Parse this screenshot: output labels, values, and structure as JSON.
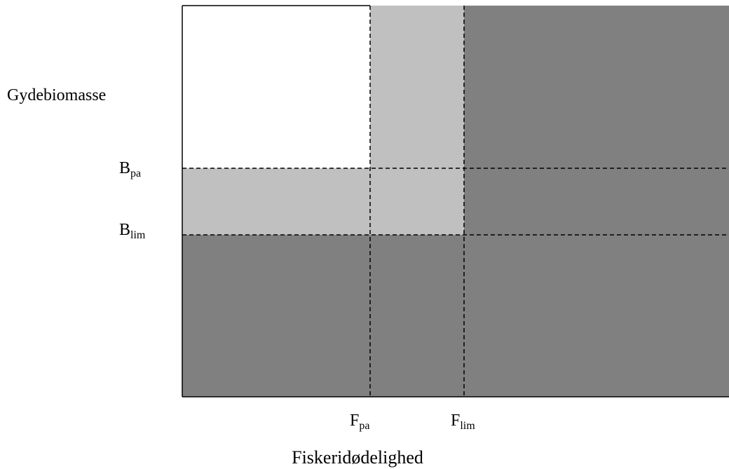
{
  "diagram": {
    "y_axis_label": "Gydebiomasse",
    "x_axis_label": "Fiskeridødelighed",
    "b_pa": {
      "base": "B",
      "sub": "pa"
    },
    "b_lim": {
      "base": "B",
      "sub": "lim"
    },
    "f_pa": {
      "base": "F",
      "sub": "pa"
    },
    "f_lim": {
      "base": "F",
      "sub": "lim"
    },
    "colors": {
      "safe": "#ffffff",
      "caution": "#c0c0c0",
      "danger": "#808080",
      "line": "#000000"
    },
    "zones": [
      {
        "name": "zone-safe",
        "fill": "safe"
      },
      {
        "name": "zone-f-caution",
        "fill": "caution"
      },
      {
        "name": "zone-b-caution",
        "fill": "caution"
      },
      {
        "name": "zone-both-caution",
        "fill": "caution"
      },
      {
        "name": "zone-f-exceeded",
        "fill": "danger"
      },
      {
        "name": "zone-b-below-limit",
        "fill": "danger"
      }
    ]
  }
}
